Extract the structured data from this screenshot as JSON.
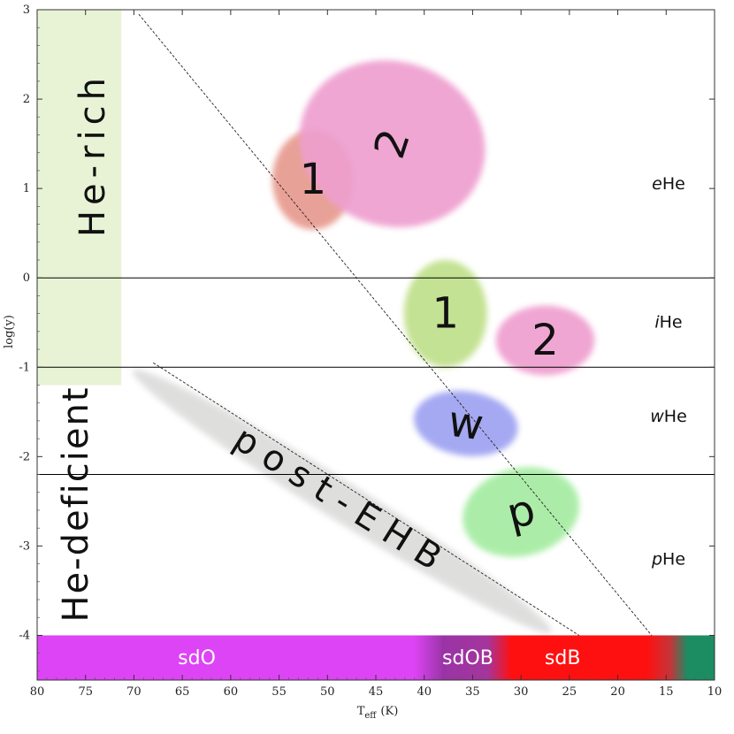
{
  "chart_data": {
    "type": "scatter",
    "xlabel": "T",
    "xlabel_sub": "eff",
    "xlabel_unit": "(K)",
    "ylabel": "log(y)",
    "xlim": [
      80,
      10
    ],
    "ylim": [
      -4.5,
      3
    ],
    "x_ticks": [
      80,
      75,
      70,
      65,
      60,
      55,
      50,
      45,
      40,
      35,
      30,
      25,
      20,
      15,
      10
    ],
    "y_ticks": [
      3,
      2,
      1,
      0,
      -1,
      -2,
      -3,
      -4
    ],
    "y_tick_labels": [
      "3",
      "2",
      "1",
      "0",
      "-1",
      "-2",
      "-3",
      "-4"
    ],
    "class_boundaries": [
      0,
      -1,
      -2.2
    ],
    "class_labels": [
      {
        "prefix": "e",
        "suffix": "He",
        "y": 1.05
      },
      {
        "prefix": "i",
        "suffix": "He",
        "y": -0.5
      },
      {
        "prefix": "w",
        "suffix": "He",
        "y": -1.55
      },
      {
        "prefix": "p",
        "suffix": "He",
        "y": -3.15
      }
    ],
    "regions": [
      {
        "label": "1",
        "x": 51.5,
        "y": 1.1,
        "rx": 4.2,
        "ry": 0.56,
        "angle": 0,
        "color": "#e79a8e"
      },
      {
        "label": "2",
        "x": 43.3,
        "y": 1.5,
        "rx": 8.5,
        "ry": 1.05,
        "angle": -72,
        "color": "#ee9fcf"
      },
      {
        "label": "1",
        "x": 37.8,
        "y": -0.4,
        "rx": 4.3,
        "ry": 0.6,
        "angle": 0,
        "color": "#bfe08a"
      },
      {
        "label": "2",
        "x": 27.5,
        "y": -0.7,
        "rx": 5.1,
        "ry": 0.39,
        "angle": 0,
        "color": "#ef9fcf"
      },
      {
        "label": "w",
        "x": 35.7,
        "y": -1.63,
        "rx": 5.4,
        "ry": 0.36,
        "angle": 8,
        "color": "#9ea2f1"
      },
      {
        "label": "p",
        "x": 30,
        "y": -2.62,
        "rx": 6.1,
        "ry": 0.49,
        "angle": -14,
        "color": "#a4eca1"
      },
      {
        "label": "post-EHB",
        "x": 48.5,
        "y": -2.5,
        "rx": 25.5,
        "ry": 0.22,
        "angle": 32,
        "color": "#dcdddb"
      }
    ],
    "he_rich_band": {
      "label": "He-rich",
      "x_from": 80,
      "x_to": 71.3,
      "y_from": 3,
      "y_to": -1.2,
      "color": "#e8f3d5"
    },
    "he_deficient_label": "He-deficient",
    "lines": [
      {
        "points": [
          [
            69.5,
            2.95
          ],
          [
            16.5,
            -4
          ]
        ]
      },
      {
        "points": [
          [
            68,
            -0.95
          ],
          [
            24,
            -4
          ]
        ]
      }
    ],
    "spectral_bands": [
      {
        "label": "sdO",
        "x_from": 80,
        "x_to": 40,
        "label_x": 63.5
      },
      {
        "label": "sdOB",
        "x_from": 40,
        "x_to": 31.5,
        "label_x": 35.5
      },
      {
        "label": "sdB",
        "x_from": 31.5,
        "x_to": 15,
        "label_x": 25.7
      }
    ]
  }
}
